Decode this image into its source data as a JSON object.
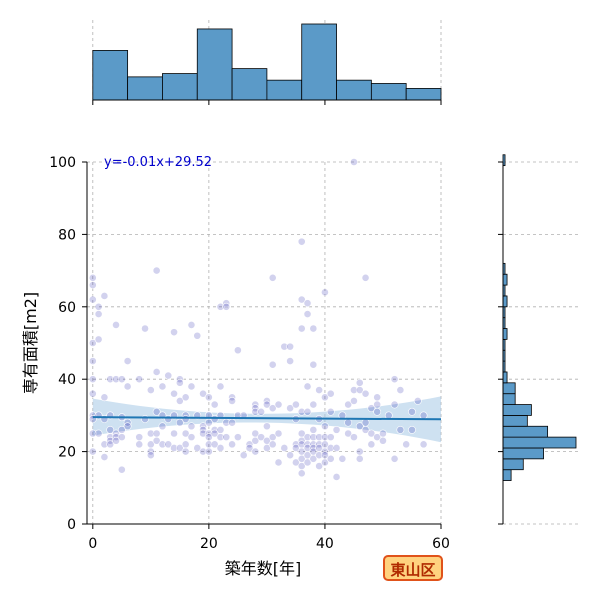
{
  "chart_data": {
    "type": "scatter",
    "xlabel": "築年数[年]",
    "ylabel": "専有面積[m2]",
    "xlim": [
      -1,
      60
    ],
    "ylim": [
      0,
      100
    ],
    "xticks": [
      0,
      20,
      40,
      60
    ],
    "yticks": [
      0,
      20,
      40,
      60,
      80,
      100
    ],
    "grid": true,
    "regression": {
      "label": "y=-0.01x+29.52",
      "slope": -0.01,
      "intercept": 29.52
    },
    "colors": {
      "points": "#3030b0",
      "regression": "#1f77b4",
      "band": "#a6c8e6",
      "hist": "#5b9ac8",
      "eq": "#0000cc"
    },
    "points": [
      {
        "x": 0,
        "y": 68
      },
      {
        "x": 0,
        "y": 66
      },
      {
        "x": 0,
        "y": 62
      },
      {
        "x": 0,
        "y": 50
      },
      {
        "x": 0,
        "y": 45
      },
      {
        "x": 0,
        "y": 40
      },
      {
        "x": 0,
        "y": 36
      },
      {
        "x": 0,
        "y": 30
      },
      {
        "x": 0,
        "y": 29
      },
      {
        "x": 0,
        "y": 25
      },
      {
        "x": 0,
        "y": 20
      },
      {
        "x": 1,
        "y": 60
      },
      {
        "x": 1,
        "y": 58
      },
      {
        "x": 1,
        "y": 51
      },
      {
        "x": 1,
        "y": 30
      },
      {
        "x": 1,
        "y": 25
      },
      {
        "x": 2,
        "y": 63
      },
      {
        "x": 2,
        "y": 35
      },
      {
        "x": 2,
        "y": 29
      },
      {
        "x": 2,
        "y": 22
      },
      {
        "x": 2,
        "y": 18.5
      },
      {
        "x": 3,
        "y": 40
      },
      {
        "x": 3,
        "y": 30
      },
      {
        "x": 3,
        "y": 26
      },
      {
        "x": 3,
        "y": 24
      },
      {
        "x": 3,
        "y": 23
      },
      {
        "x": 3,
        "y": 22
      },
      {
        "x": 4,
        "y": 55
      },
      {
        "x": 4,
        "y": 40
      },
      {
        "x": 4,
        "y": 25
      },
      {
        "x": 4,
        "y": 24
      },
      {
        "x": 4,
        "y": 23
      },
      {
        "x": 5,
        "y": 40
      },
      {
        "x": 5,
        "y": 29.5
      },
      {
        "x": 5,
        "y": 26
      },
      {
        "x": 5,
        "y": 24
      },
      {
        "x": 5,
        "y": 15
      },
      {
        "x": 6,
        "y": 45
      },
      {
        "x": 6,
        "y": 38
      },
      {
        "x": 6,
        "y": 28
      },
      {
        "x": 6,
        "y": 27
      },
      {
        "x": 8,
        "y": 40
      },
      {
        "x": 8,
        "y": 24
      },
      {
        "x": 8,
        "y": 22
      },
      {
        "x": 9,
        "y": 54
      },
      {
        "x": 9,
        "y": 29
      },
      {
        "x": 10,
        "y": 37
      },
      {
        "x": 10,
        "y": 25
      },
      {
        "x": 10,
        "y": 22
      },
      {
        "x": 10,
        "y": 20
      },
      {
        "x": 10,
        "y": 19
      },
      {
        "x": 11,
        "y": 70
      },
      {
        "x": 11,
        "y": 42
      },
      {
        "x": 11,
        "y": 31
      },
      {
        "x": 11,
        "y": 25
      },
      {
        "x": 11,
        "y": 23
      },
      {
        "x": 12,
        "y": 38
      },
      {
        "x": 12,
        "y": 30
      },
      {
        "x": 12,
        "y": 27
      },
      {
        "x": 12,
        "y": 22
      },
      {
        "x": 13,
        "y": 41
      },
      {
        "x": 13,
        "y": 29
      },
      {
        "x": 13,
        "y": 22
      },
      {
        "x": 14,
        "y": 53
      },
      {
        "x": 14,
        "y": 36
      },
      {
        "x": 14,
        "y": 30
      },
      {
        "x": 14,
        "y": 25
      },
      {
        "x": 14,
        "y": 21
      },
      {
        "x": 15,
        "y": 40
      },
      {
        "x": 15,
        "y": 39
      },
      {
        "x": 15,
        "y": 34
      },
      {
        "x": 15,
        "y": 28
      },
      {
        "x": 15,
        "y": 21
      },
      {
        "x": 16,
        "y": 35
      },
      {
        "x": 16,
        "y": 30
      },
      {
        "x": 16,
        "y": 29
      },
      {
        "x": 16,
        "y": 25
      },
      {
        "x": 16,
        "y": 22
      },
      {
        "x": 16,
        "y": 20
      },
      {
        "x": 17,
        "y": 55
      },
      {
        "x": 17,
        "y": 38
      },
      {
        "x": 17,
        "y": 27
      },
      {
        "x": 17,
        "y": 24
      },
      {
        "x": 18,
        "y": 52
      },
      {
        "x": 18,
        "y": 30
      },
      {
        "x": 18,
        "y": 21
      },
      {
        "x": 19,
        "y": 36
      },
      {
        "x": 19,
        "y": 27
      },
      {
        "x": 19,
        "y": 26
      },
      {
        "x": 19,
        "y": 25
      },
      {
        "x": 19,
        "y": 20
      },
      {
        "x": 20,
        "y": 35
      },
      {
        "x": 20,
        "y": 30
      },
      {
        "x": 20,
        "y": 28
      },
      {
        "x": 20,
        "y": 25
      },
      {
        "x": 20,
        "y": 24
      },
      {
        "x": 20,
        "y": 22
      },
      {
        "x": 20,
        "y": 20
      },
      {
        "x": 21,
        "y": 33
      },
      {
        "x": 21,
        "y": 29
      },
      {
        "x": 21,
        "y": 26
      },
      {
        "x": 21,
        "y": 25
      },
      {
        "x": 21,
        "y": 22
      },
      {
        "x": 22,
        "y": 60
      },
      {
        "x": 22,
        "y": 38
      },
      {
        "x": 22,
        "y": 30
      },
      {
        "x": 22,
        "y": 26
      },
      {
        "x": 22,
        "y": 24
      },
      {
        "x": 22,
        "y": 21
      },
      {
        "x": 23,
        "y": 61
      },
      {
        "x": 23,
        "y": 60
      },
      {
        "x": 23,
        "y": 28
      },
      {
        "x": 23,
        "y": 24
      },
      {
        "x": 24,
        "y": 35
      },
      {
        "x": 24,
        "y": 34
      },
      {
        "x": 24,
        "y": 28
      },
      {
        "x": 24,
        "y": 22
      },
      {
        "x": 25,
        "y": 48
      },
      {
        "x": 25,
        "y": 30
      },
      {
        "x": 25,
        "y": 24
      },
      {
        "x": 26,
        "y": 30
      },
      {
        "x": 26,
        "y": 19
      },
      {
        "x": 27,
        "y": 22
      },
      {
        "x": 27,
        "y": 21
      },
      {
        "x": 28,
        "y": 33
      },
      {
        "x": 28,
        "y": 32
      },
      {
        "x": 28,
        "y": 31
      },
      {
        "x": 28,
        "y": 25
      },
      {
        "x": 28,
        "y": 23
      },
      {
        "x": 28,
        "y": 20
      },
      {
        "x": 29,
        "y": 31
      },
      {
        "x": 29,
        "y": 24
      },
      {
        "x": 30,
        "y": 34
      },
      {
        "x": 30,
        "y": 33
      },
      {
        "x": 30,
        "y": 27
      },
      {
        "x": 30,
        "y": 23
      },
      {
        "x": 30,
        "y": 21
      },
      {
        "x": 31,
        "y": 68
      },
      {
        "x": 31,
        "y": 44
      },
      {
        "x": 31,
        "y": 32
      },
      {
        "x": 31,
        "y": 24
      },
      {
        "x": 31,
        "y": 22
      },
      {
        "x": 32,
        "y": 33
      },
      {
        "x": 32,
        "y": 25
      },
      {
        "x": 32,
        "y": 17
      },
      {
        "x": 33,
        "y": 49
      },
      {
        "x": 33,
        "y": 21
      },
      {
        "x": 34,
        "y": 49
      },
      {
        "x": 34,
        "y": 45
      },
      {
        "x": 34,
        "y": 32
      },
      {
        "x": 34,
        "y": 19
      },
      {
        "x": 35,
        "y": 33
      },
      {
        "x": 35,
        "y": 29
      },
      {
        "x": 35,
        "y": 22
      },
      {
        "x": 35,
        "y": 21
      },
      {
        "x": 35,
        "y": 17
      },
      {
        "x": 36,
        "y": 78
      },
      {
        "x": 36,
        "y": 62
      },
      {
        "x": 36,
        "y": 54
      },
      {
        "x": 36,
        "y": 31
      },
      {
        "x": 36,
        "y": 25
      },
      {
        "x": 36,
        "y": 23
      },
      {
        "x": 36,
        "y": 22
      },
      {
        "x": 36,
        "y": 20
      },
      {
        "x": 36,
        "y": 18
      },
      {
        "x": 36,
        "y": 16
      },
      {
        "x": 36,
        "y": 14
      },
      {
        "x": 37,
        "y": 61
      },
      {
        "x": 37,
        "y": 58
      },
      {
        "x": 37,
        "y": 38
      },
      {
        "x": 37,
        "y": 31
      },
      {
        "x": 37,
        "y": 24
      },
      {
        "x": 37,
        "y": 22
      },
      {
        "x": 37,
        "y": 21
      },
      {
        "x": 37,
        "y": 19
      },
      {
        "x": 37,
        "y": 17
      },
      {
        "x": 38,
        "y": 54
      },
      {
        "x": 38,
        "y": 44
      },
      {
        "x": 38,
        "y": 33
      },
      {
        "x": 38,
        "y": 26
      },
      {
        "x": 38,
        "y": 24
      },
      {
        "x": 38,
        "y": 22
      },
      {
        "x": 38,
        "y": 21
      },
      {
        "x": 38,
        "y": 20
      },
      {
        "x": 38,
        "y": 18
      },
      {
        "x": 39,
        "y": 37
      },
      {
        "x": 39,
        "y": 29
      },
      {
        "x": 39,
        "y": 24
      },
      {
        "x": 39,
        "y": 22
      },
      {
        "x": 39,
        "y": 21
      },
      {
        "x": 39,
        "y": 19
      },
      {
        "x": 39,
        "y": 16
      },
      {
        "x": 40,
        "y": 64
      },
      {
        "x": 40,
        "y": 35
      },
      {
        "x": 40,
        "y": 27
      },
      {
        "x": 40,
        "y": 24
      },
      {
        "x": 40,
        "y": 22
      },
      {
        "x": 40,
        "y": 20
      },
      {
        "x": 40,
        "y": 19
      },
      {
        "x": 40,
        "y": 17
      },
      {
        "x": 41,
        "y": 36
      },
      {
        "x": 41,
        "y": 31
      },
      {
        "x": 41,
        "y": 24
      },
      {
        "x": 41,
        "y": 21
      },
      {
        "x": 41,
        "y": 18
      },
      {
        "x": 42,
        "y": 26
      },
      {
        "x": 42,
        "y": 21
      },
      {
        "x": 42,
        "y": 13
      },
      {
        "x": 43,
        "y": 30
      },
      {
        "x": 43,
        "y": 18
      },
      {
        "x": 44,
        "y": 33
      },
      {
        "x": 44,
        "y": 28
      },
      {
        "x": 44,
        "y": 25
      },
      {
        "x": 45,
        "y": 100
      },
      {
        "x": 45,
        "y": 37
      },
      {
        "x": 45,
        "y": 34
      },
      {
        "x": 45,
        "y": 24
      },
      {
        "x": 46,
        "y": 39
      },
      {
        "x": 46,
        "y": 37
      },
      {
        "x": 46,
        "y": 27
      },
      {
        "x": 46,
        "y": 20
      },
      {
        "x": 46,
        "y": 18
      },
      {
        "x": 47,
        "y": 68
      },
      {
        "x": 47,
        "y": 36
      },
      {
        "x": 47,
        "y": 28
      },
      {
        "x": 47,
        "y": 26
      },
      {
        "x": 48,
        "y": 32
      },
      {
        "x": 48,
        "y": 25
      },
      {
        "x": 48,
        "y": 22
      },
      {
        "x": 49,
        "y": 35
      },
      {
        "x": 49,
        "y": 33
      },
      {
        "x": 49,
        "y": 31
      },
      {
        "x": 49,
        "y": 24
      },
      {
        "x": 50,
        "y": 25
      },
      {
        "x": 50,
        "y": 23
      },
      {
        "x": 51,
        "y": 30
      },
      {
        "x": 52,
        "y": 40
      },
      {
        "x": 52,
        "y": 33
      },
      {
        "x": 52,
        "y": 18
      },
      {
        "x": 53,
        "y": 37
      },
      {
        "x": 53,
        "y": 26
      },
      {
        "x": 54,
        "y": 22
      },
      {
        "x": 55,
        "y": 31
      },
      {
        "x": 55,
        "y": 26
      },
      {
        "x": 56,
        "y": 34
      },
      {
        "x": 57,
        "y": 30
      },
      {
        "x": 57,
        "y": 22
      }
    ],
    "x_histogram": {
      "bins": [
        {
          "from": 0,
          "to": 6,
          "count": 30
        },
        {
          "from": 6,
          "to": 12,
          "count": 14
        },
        {
          "from": 12,
          "to": 18,
          "count": 16
        },
        {
          "from": 18,
          "to": 24,
          "count": 43
        },
        {
          "from": 24,
          "to": 30,
          "count": 19
        },
        {
          "from": 30,
          "to": 36,
          "count": 12
        },
        {
          "from": 36,
          "to": 42,
          "count": 46
        },
        {
          "from": 42,
          "to": 48,
          "count": 12
        },
        {
          "from": 48,
          "to": 54,
          "count": 10
        },
        {
          "from": 54,
          "to": 60,
          "count": 7
        }
      ]
    },
    "y_histogram": {
      "bins": [
        {
          "from": 12,
          "to": 15,
          "count": 2
        },
        {
          "from": 15,
          "to": 18,
          "count": 5
        },
        {
          "from": 18,
          "to": 21,
          "count": 10
        },
        {
          "from": 21,
          "to": 24,
          "count": 18
        },
        {
          "from": 24,
          "to": 27,
          "count": 11
        },
        {
          "from": 27,
          "to": 30,
          "count": 6
        },
        {
          "from": 30,
          "to": 33,
          "count": 7
        },
        {
          "from": 33,
          "to": 36,
          "count": 3
        },
        {
          "from": 36,
          "to": 39,
          "count": 3
        },
        {
          "from": 39,
          "to": 42,
          "count": 1
        },
        {
          "from": 42,
          "to": 45,
          "count": 0.5
        },
        {
          "from": 45,
          "to": 48,
          "count": 0.5
        },
        {
          "from": 48,
          "to": 51,
          "count": 0.5
        },
        {
          "from": 51,
          "to": 54,
          "count": 1
        },
        {
          "from": 54,
          "to": 57,
          "count": 0.5
        },
        {
          "from": 57,
          "to": 60,
          "count": 0.5
        },
        {
          "from": 60,
          "to": 63,
          "count": 1
        },
        {
          "from": 63,
          "to": 66,
          "count": 0.5
        },
        {
          "from": 66,
          "to": 69,
          "count": 1
        },
        {
          "from": 69,
          "to": 72,
          "count": 0.5
        },
        {
          "from": 99,
          "to": 102,
          "count": 0.5
        }
      ]
    }
  },
  "badge": {
    "label": "東山区"
  }
}
